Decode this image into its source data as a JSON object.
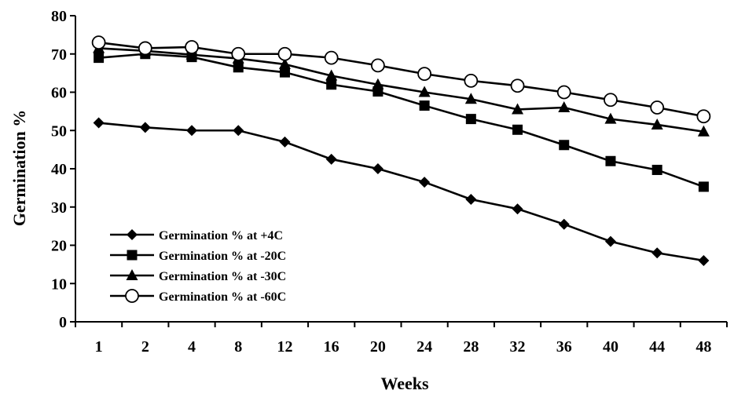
{
  "chart_data": {
    "type": "line",
    "title": "",
    "xlabel": "Weeks",
    "ylabel": "Germination %",
    "categories": [
      "1",
      "2",
      "4",
      "8",
      "12",
      "16",
      "20",
      "24",
      "28",
      "32",
      "36",
      "40",
      "44",
      "48"
    ],
    "ylim": [
      0,
      80
    ],
    "yticks": [
      0,
      10,
      20,
      30,
      40,
      50,
      60,
      70,
      80
    ],
    "grid": false,
    "legend_position": "bottom-left",
    "series": [
      {
        "name": "Germination % at +4C",
        "marker": "diamond",
        "values": [
          52,
          50.8,
          50,
          50,
          47,
          42.5,
          40,
          36.5,
          32,
          29.5,
          25.5,
          21,
          18,
          16
        ]
      },
      {
        "name": "Germination % at -20C",
        "marker": "square",
        "values": [
          69,
          70,
          69.2,
          66.5,
          65.2,
          62,
          60.2,
          56.5,
          53,
          50.2,
          46.2,
          42,
          39.7,
          35.3
        ]
      },
      {
        "name": "Germination % at -30C",
        "marker": "triangle",
        "values": [
          71.5,
          70.8,
          69.8,
          68.8,
          67.3,
          64.3,
          62,
          60,
          58.2,
          55.5,
          56,
          53,
          51.5,
          49.7
        ]
      },
      {
        "name": "Germination % at -60C",
        "marker": "circle",
        "values": [
          73,
          71.5,
          71.8,
          70,
          70,
          69,
          67,
          64.8,
          63,
          61.7,
          60,
          58,
          56,
          53.7
        ]
      }
    ]
  }
}
